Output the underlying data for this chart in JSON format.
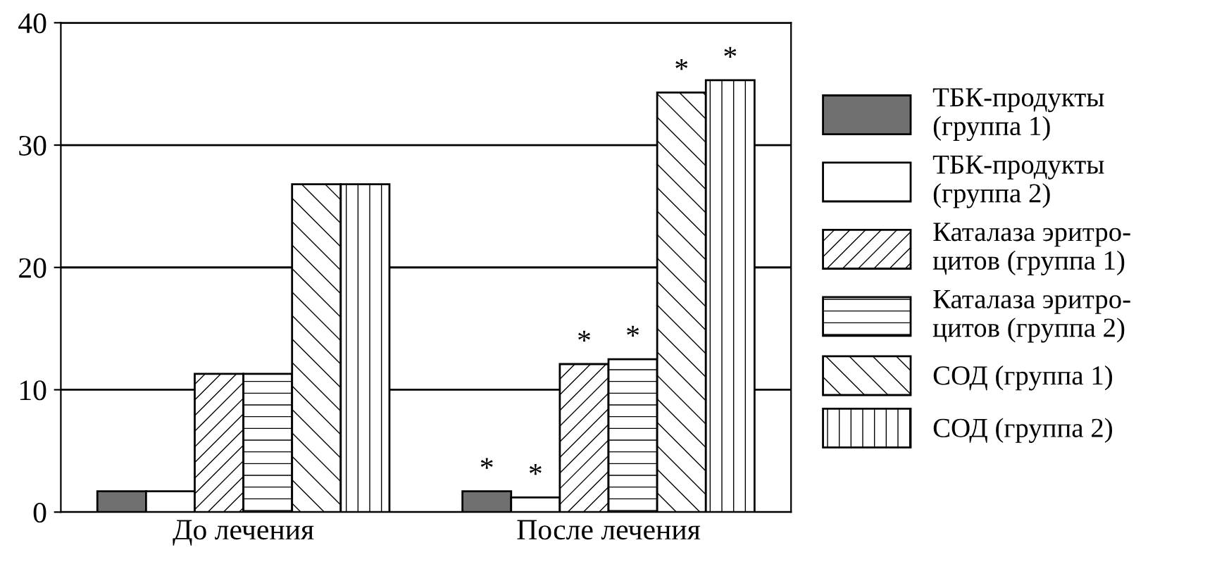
{
  "chart_data": {
    "type": "bar",
    "categories": [
      "До лечения",
      "После лечения"
    ],
    "series": [
      {
        "name": "ТБК-продукты\n(группа 1)",
        "color": "#707070",
        "values": [
          1.7,
          1.7
        ],
        "value_labels": [
          null,
          "*"
        ]
      },
      {
        "name": "ТБК-продукты\n(группа 2)",
        "color": "#ffffff",
        "values": [
          1.7,
          1.2
        ],
        "value_labels": [
          null,
          "*"
        ]
      },
      {
        "name": "Каталаза эритро-\nцитов (группа 1)",
        "color": "#ffffff",
        "values": [
          11.3,
          12.1
        ],
        "value_labels": [
          null,
          "*"
        ]
      },
      {
        "name": "Каталаза эритро-\nцитов (группа 2)",
        "color": "#ffffff",
        "values": [
          11.3,
          12.5
        ],
        "value_labels": [
          null,
          "*"
        ]
      },
      {
        "name": "СОД (группа 1)",
        "color": "#ffffff",
        "values": [
          26.8,
          34.3
        ],
        "value_labels": [
          null,
          "*"
        ]
      },
      {
        "name": "СОД (группа 2)",
        "color": "#ffffff",
        "values": [
          26.8,
          35.3
        ],
        "value_labels": [
          null,
          "*"
        ]
      }
    ],
    "ylim": [
      0,
      40
    ],
    "yticks": [
      0,
      10,
      20,
      30,
      40
    ],
    "grid": "y",
    "legend": "right"
  }
}
